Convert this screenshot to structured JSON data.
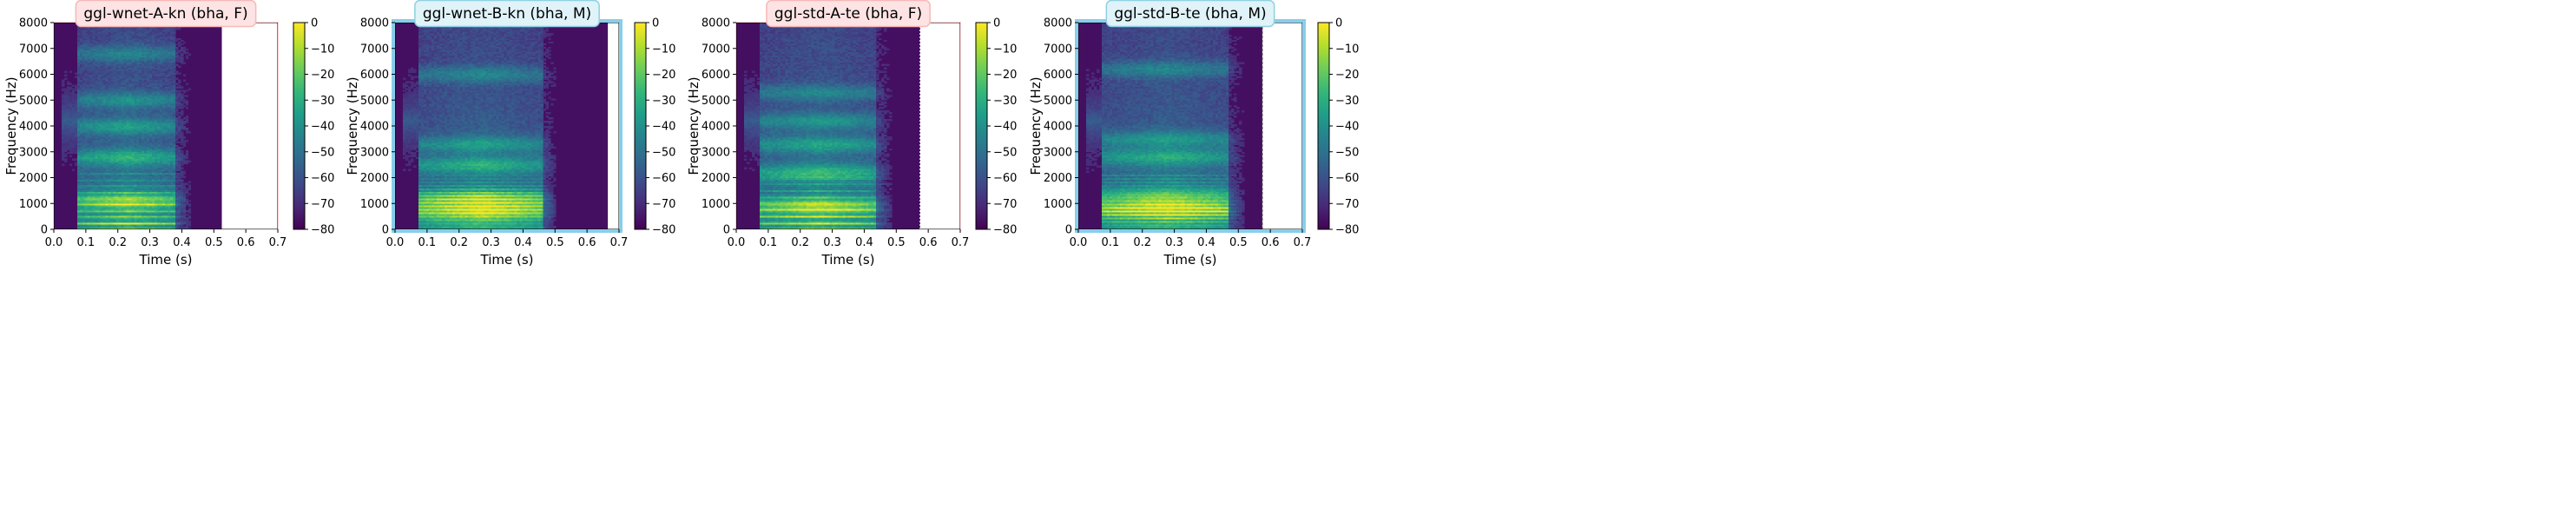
{
  "figure": {
    "panels": [
      {
        "title": "ggl-wnet-A-kn (bha, F)",
        "title_bg": "#fde3e3",
        "title_border": "#f7b8b8",
        "frame_color": "#ffd1d6",
        "frame_style": "thin",
        "xlabel": "Time (s)",
        "ylabel": "Frequency (Hz)",
        "colorbar_ticks": [
          "0",
          "−10",
          "−20",
          "−30",
          "−40",
          "−50",
          "−60",
          "−70",
          "−80"
        ],
        "duration": 0.525,
        "voice_end": 0.38,
        "harmonic_base_hz": 240,
        "formants_hz": [
          1100,
          2800,
          4000,
          5000,
          6800
        ],
        "end_line": "none"
      },
      {
        "title": "ggl-wnet-B-kn (bha, M)",
        "title_bg": "#dff3f8",
        "title_border": "#8fd0e3",
        "frame_color": "#87ceeb",
        "frame_style": "thick",
        "xlabel": "Time (s)",
        "ylabel": "Frequency (Hz)",
        "colorbar_ticks": [
          "0",
          "−10",
          "−20",
          "−30",
          "−40",
          "−50",
          "−60",
          "−70",
          "−80"
        ],
        "duration": 0.665,
        "voice_end": 0.46,
        "harmonic_base_hz": 130,
        "formants_hz": [
          700,
          1200,
          2500,
          3300,
          6000
        ],
        "end_line": "none"
      },
      {
        "title": "ggl-std-A-te (bha, F)",
        "title_bg": "#fde3e3",
        "title_border": "#f7b8b8",
        "frame_color": "#ffd1d6",
        "frame_style": "thin",
        "xlabel": "Time (s)",
        "ylabel": "Frequency (Hz)",
        "colorbar_ticks": [
          "0",
          "−10",
          "−20",
          "−30",
          "−40",
          "−50",
          "−60",
          "−70",
          "−80"
        ],
        "duration": 0.575,
        "voice_end": 0.44,
        "harmonic_base_hz": 250,
        "formants_hz": [
          900,
          2200,
          3300,
          4200,
          5300
        ],
        "end_line": "dotted"
      },
      {
        "title": "ggl-std-B-te (bha, M)",
        "title_bg": "#dff3f8",
        "title_border": "#8fd0e3",
        "frame_color": "#87ceeb",
        "frame_style": "thick",
        "xlabel": "Time (s)",
        "ylabel": "Frequency (Hz)",
        "colorbar_ticks": [
          "0",
          "−10",
          "−20",
          "−30",
          "−40",
          "−50",
          "−60",
          "−70",
          "−80"
        ],
        "duration": 0.575,
        "voice_end": 0.47,
        "harmonic_base_hz": 140,
        "formants_hz": [
          800,
          1300,
          2800,
          3500,
          6200
        ],
        "end_line": "dashed"
      }
    ]
  },
  "chart_data": [
    {
      "type": "heatmap",
      "title": "ggl-wnet-A-kn (bha, F)",
      "xlabel": "Time (s)",
      "ylabel": "Frequency (Hz)",
      "xlim": [
        0.0,
        0.7
      ],
      "ylim": [
        0,
        8000
      ],
      "xticks": [
        "0.0",
        "0.1",
        "0.2",
        "0.3",
        "0.4",
        "0.5",
        "0.6",
        "0.7"
      ],
      "yticks": [
        "0",
        "1000",
        "2000",
        "3000",
        "4000",
        "5000",
        "6000",
        "7000",
        "8000"
      ],
      "colorbar": {
        "label": "",
        "range_db": [
          -80,
          0
        ],
        "colormap": "viridis"
      },
      "signal_extent_s": 0.525,
      "voiced_region_s": [
        0.0,
        0.38
      ]
    },
    {
      "type": "heatmap",
      "title": "ggl-wnet-B-kn (bha, M)",
      "xlabel": "Time (s)",
      "ylabel": "Frequency (Hz)",
      "xlim": [
        0.0,
        0.7
      ],
      "ylim": [
        0,
        8000
      ],
      "xticks": [
        "0.0",
        "0.1",
        "0.2",
        "0.3",
        "0.4",
        "0.5",
        "0.6",
        "0.7"
      ],
      "yticks": [
        "0",
        "1000",
        "2000",
        "3000",
        "4000",
        "5000",
        "6000",
        "7000",
        "8000"
      ],
      "colorbar": {
        "label": "",
        "range_db": [
          -80,
          0
        ],
        "colormap": "viridis"
      },
      "signal_extent_s": 0.665,
      "voiced_region_s": [
        0.0,
        0.46
      ]
    },
    {
      "type": "heatmap",
      "title": "ggl-std-A-te (bha, F)",
      "xlabel": "Time (s)",
      "ylabel": "Frequency (Hz)",
      "xlim": [
        0.0,
        0.7
      ],
      "ylim": [
        0,
        8000
      ],
      "xticks": [
        "0.0",
        "0.1",
        "0.2",
        "0.3",
        "0.4",
        "0.5",
        "0.6",
        "0.7"
      ],
      "yticks": [
        "0",
        "1000",
        "2000",
        "3000",
        "4000",
        "5000",
        "6000",
        "7000",
        "8000"
      ],
      "colorbar": {
        "label": "",
        "range_db": [
          -80,
          0
        ],
        "colormap": "viridis"
      },
      "signal_extent_s": 0.575,
      "voiced_region_s": [
        0.0,
        0.44
      ]
    },
    {
      "type": "heatmap",
      "title": "ggl-std-B-te (bha, M)",
      "xlabel": "Time (s)",
      "ylabel": "Frequency (Hz)",
      "xlim": [
        0.0,
        0.7
      ],
      "ylim": [
        0,
        8000
      ],
      "xticks": [
        "0.0",
        "0.1",
        "0.2",
        "0.3",
        "0.4",
        "0.5",
        "0.6",
        "0.7"
      ],
      "yticks": [
        "0",
        "1000",
        "2000",
        "3000",
        "4000",
        "5000",
        "6000",
        "7000",
        "8000"
      ],
      "colorbar": {
        "label": "",
        "range_db": [
          -80,
          0
        ],
        "colormap": "viridis"
      },
      "signal_extent_s": 0.575,
      "voiced_region_s": [
        0.0,
        0.47
      ]
    }
  ]
}
